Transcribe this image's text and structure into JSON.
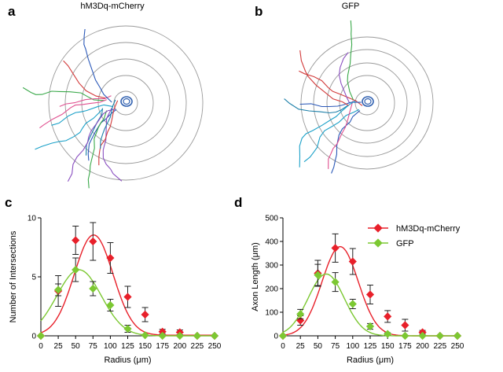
{
  "panels": {
    "a": {
      "letter": "a",
      "title": "hM3Dq-mCherry"
    },
    "b": {
      "letter": "b",
      "title": "GFP"
    },
    "c": {
      "letter": "c"
    },
    "d": {
      "letter": "d"
    }
  },
  "legend": {
    "items": [
      {
        "label": "hM3Dq-mCherry",
        "color": "#e8202a"
      },
      {
        "label": "GFP",
        "color": "#7cc832"
      }
    ]
  },
  "colors": {
    "series_red": "#e8202a",
    "series_green": "#7cc832",
    "error_bar": "#222222",
    "sholl_ring": "#9a9a9a",
    "soma": "#3060b0"
  },
  "chart_data": [
    {
      "type": "line",
      "title": "",
      "xlabel": "Radius (μm)",
      "ylabel": "Number of Intersections",
      "x": [
        0,
        25,
        50,
        75,
        100,
        125,
        150,
        175,
        200,
        225,
        250
      ],
      "xticks": [
        "0",
        "25",
        "50",
        "75",
        "100",
        "125",
        "150",
        "175",
        "200",
        "225",
        "250"
      ],
      "yticks": [
        "0",
        "5",
        "10"
      ],
      "ylim": [
        0,
        10
      ],
      "xlim": [
        0,
        250
      ],
      "series": [
        {
          "name": "hM3Dq-mCherry",
          "values": [
            0,
            3.8,
            8.1,
            8.0,
            6.6,
            3.3,
            1.8,
            0.35,
            0.3,
            0,
            0
          ],
          "errors": [
            0,
            1.3,
            1.2,
            1.6,
            1.3,
            0.9,
            0.6,
            0.2,
            0.2,
            0,
            0
          ],
          "fit": {
            "amp": 8.5,
            "mu": 76,
            "sigma": 28,
            "base": 0.05
          }
        },
        {
          "name": "GFP",
          "values": [
            0,
            3.9,
            5.6,
            4.0,
            2.6,
            0.6,
            0.05,
            0,
            0,
            0,
            0
          ],
          "errors": [
            0,
            0.5,
            1.0,
            0.6,
            0.5,
            0.3,
            0.05,
            0,
            0,
            0,
            0
          ],
          "fit": {
            "amp": 5.6,
            "mu": 55,
            "sigma": 32,
            "base": 0.0
          }
        }
      ]
    },
    {
      "type": "line",
      "title": "",
      "xlabel": "Radius (μm)",
      "ylabel": "Axon Length (μm)",
      "x": [
        0,
        25,
        50,
        75,
        100,
        125,
        150,
        175,
        200,
        225,
        250
      ],
      "xticks": [
        "0",
        "25",
        "50",
        "75",
        "100",
        "125",
        "150",
        "175",
        "200",
        "225",
        "250"
      ],
      "yticks": [
        "0",
        "100",
        "200",
        "300",
        "400",
        "500"
      ],
      "ylim": [
        0,
        500
      ],
      "xlim": [
        0,
        250
      ],
      "series": [
        {
          "name": "hM3Dq-mCherry",
          "values": [
            0,
            65,
            265,
            372,
            315,
            175,
            82,
            45,
            15,
            0,
            0
          ],
          "errors": [
            0,
            20,
            55,
            60,
            55,
            40,
            25,
            25,
            8,
            0,
            0
          ],
          "fit": {
            "amp": 378,
            "mu": 82,
            "sigma": 26,
            "base": 0
          }
        },
        {
          "name": "GFP",
          "values": [
            0,
            92,
            258,
            228,
            135,
            40,
            8,
            0,
            0,
            0,
            0
          ],
          "errors": [
            0,
            20,
            45,
            40,
            20,
            12,
            5,
            0,
            0,
            0,
            0
          ],
          "fit": {
            "amp": 262,
            "mu": 62,
            "sigma": 26,
            "base": 0
          }
        }
      ]
    }
  ]
}
